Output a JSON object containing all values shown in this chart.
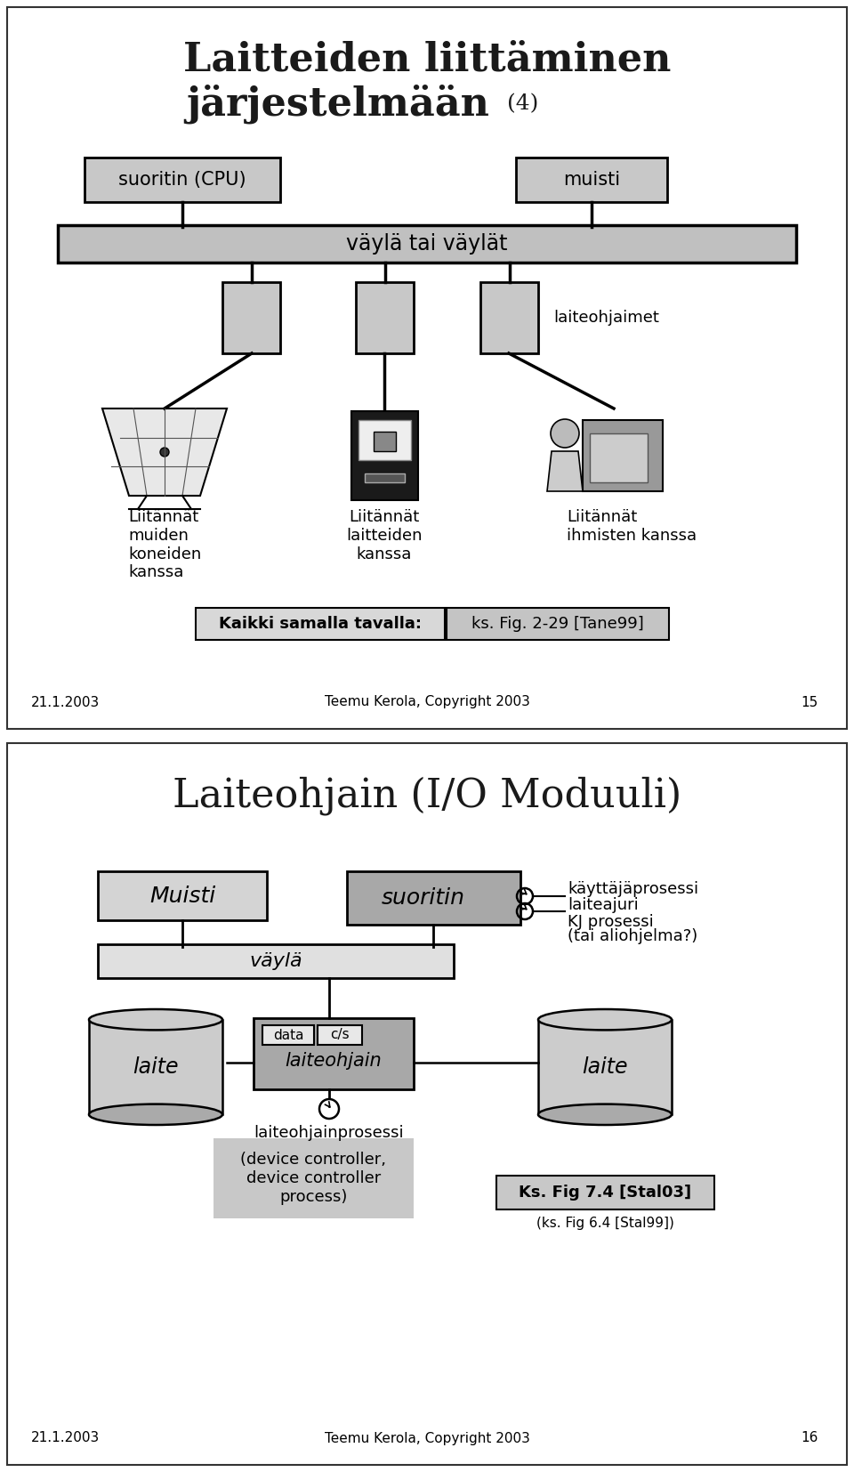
{
  "bg_color": "#ffffff",
  "slide1": {
    "title_line1": "Laitteiden liittäminen",
    "title_line2": "järjestelmään",
    "title_suffix": "(4)",
    "box_cpu": "suoritin (CPU)",
    "box_muisti": "muisti",
    "box_vayla": "väylä tai väylät",
    "label_laiteohjaimet": "laiteohjaimet",
    "label_left": "Liitännät\nmuiden\nkoneiden\nkanssa",
    "label_mid": "Liitännät\nlaitteiden\nkanssa",
    "label_right": "Liitännät\nihmisten kanssa",
    "kaikki_text": "Kaikki samalla tavalla:",
    "ref_text": "ks. Fig. 2-29 [Tane99]",
    "date": "21.1.2003",
    "copyright": "Teemu Kerola, Copyright 2003",
    "page": "15",
    "box_fill": "#c8c8c8",
    "box_edge": "#000000",
    "vayla_fill": "#c0c0c0"
  },
  "slide2": {
    "title": "Laiteohjain (I/O Moduuli)",
    "box_muisti": "Muisti",
    "box_suoritin": "suoritin",
    "box_vayla": "väylä",
    "box_laiteohjain": "laiteohjain",
    "box_data": "data",
    "box_cs": "c/s",
    "label_kayttaja": "käyttäjäprosessi",
    "label_laiteajuri": "laiteajuri",
    "label_kj": "KJ prosessi",
    "label_aliohjelma": "(tai aliohjelma?)",
    "label_laite_left": "laite",
    "label_laite_right": "laite",
    "label_prosessi": "laiteohjainprosessi",
    "desc_text": "(device controller,\ndevice controller\nprocess)",
    "ref_text1": "Ks. Fig 7.4 [Stal03]",
    "ref_text2": "(ks. Fig 6.4 [Stal99])",
    "date": "21.1.2003",
    "copyright": "Teemu Kerola, Copyright 2003",
    "page": "16",
    "box_fill_light": "#d4d4d4",
    "box_fill_dark": "#a8a8a8",
    "box_edge": "#000000"
  }
}
